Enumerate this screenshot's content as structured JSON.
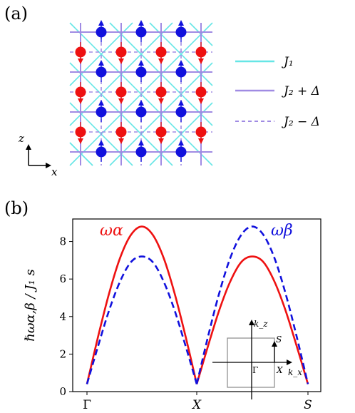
{
  "colors": {
    "red": "#ee1111",
    "blue": "#1111dd",
    "j1": "#66e6e6",
    "j2": "#a08be3",
    "gray": "#888888"
  },
  "panel_a": {
    "label": "(a)",
    "axis_z": "z",
    "axis_x": "x",
    "legend": [
      {
        "label": "J₁",
        "style": "solid",
        "color": "#66e6e6"
      },
      {
        "label": "J₂ + Δ",
        "style": "solid",
        "color": "#a08be3"
      },
      {
        "label": "J₂ − Δ",
        "style": "dashed",
        "color": "#a08be3"
      }
    ]
  },
  "panel_b": {
    "label": "(b)",
    "inset": {
      "kz": "k_z",
      "kx": "k_x",
      "S": "S",
      "Gamma": "Γ",
      "X": "X"
    }
  },
  "chart_data": {
    "type": "line",
    "ylabel": "ℏωα,β / J₁ s",
    "xticks": [
      "Γ",
      "X",
      "S"
    ],
    "yticks": [
      0,
      2,
      4,
      6,
      8
    ],
    "ylim": [
      0,
      9.2
    ],
    "x": [
      0.0,
      0.1,
      0.2,
      0.3,
      0.4,
      0.5,
      0.6,
      0.7,
      0.8,
      0.9,
      1.0,
      1.1,
      1.2,
      1.3,
      1.4,
      1.5,
      1.6,
      1.7,
      1.8,
      1.9,
      2.0
    ],
    "series": [
      {
        "name": "ωα",
        "style": "solid",
        "color": "#ee1111",
        "values": [
          0.4,
          2.9,
          5.2,
          7.1,
          8.35,
          8.8,
          8.35,
          7.1,
          5.2,
          2.9,
          0.4,
          2.4,
          4.3,
          5.85,
          6.9,
          7.2,
          6.9,
          5.85,
          4.3,
          2.4,
          0.4
        ]
      },
      {
        "name": "ωβ",
        "style": "dashed",
        "color": "#1111dd",
        "values": [
          0.4,
          2.4,
          4.3,
          5.85,
          6.9,
          7.2,
          6.9,
          5.85,
          4.3,
          2.4,
          0.4,
          2.9,
          5.2,
          7.1,
          8.35,
          8.8,
          8.35,
          7.1,
          5.2,
          2.9,
          0.4
        ]
      }
    ]
  }
}
